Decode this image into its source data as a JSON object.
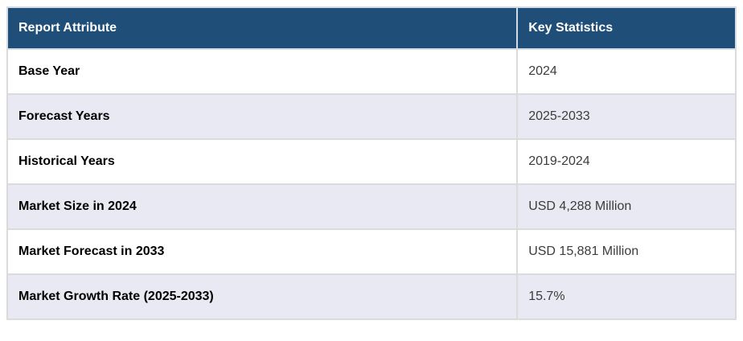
{
  "table": {
    "headers": {
      "attribute": "Report Attribute",
      "statistics": "Key Statistics"
    },
    "rows": [
      {
        "attribute": "Base Year",
        "value": "2024"
      },
      {
        "attribute": "Forecast Years",
        "value": "2025-2033"
      },
      {
        "attribute": "Historical Years",
        "value": "2019-2024"
      },
      {
        "attribute": "Market Size in 2024",
        "value": "USD 4,288 Million"
      },
      {
        "attribute": "Market Forecast in 2033",
        "value": "USD 15,881 Million"
      },
      {
        "attribute": "Market Growth Rate (2025-2033)",
        "value": "15.7%"
      }
    ],
    "colors": {
      "header_bg": "#1f4e79",
      "header_text": "#ffffff",
      "row_alt_bg": "#e8e9f3",
      "row_bg": "#ffffff",
      "border": "#dbdbdb",
      "attribute_text": "#000000",
      "value_text": "#3c3c3c"
    }
  }
}
